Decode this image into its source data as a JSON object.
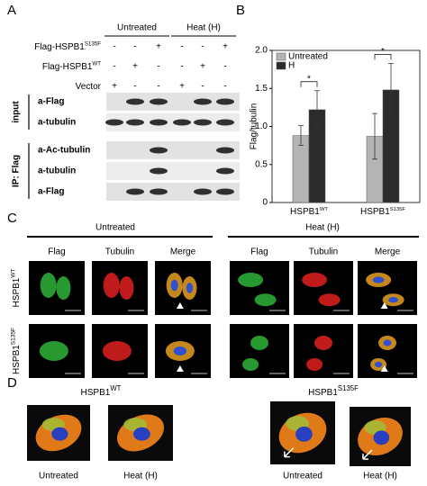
{
  "panel_labels": [
    "A",
    "B",
    "C",
    "D"
  ],
  "panel_a": {
    "groups": [
      "Untreated",
      "Heat (H)"
    ],
    "rows": [
      {
        "label": "Flag-HSPB1",
        "sup": "S135F",
        "signs": [
          "-",
          "-",
          "+",
          "-",
          "-",
          "+"
        ]
      },
      {
        "label": "Flag-HSPB1",
        "sup": "WT",
        "signs": [
          "-",
          "+",
          "-",
          "-",
          "+",
          "-"
        ]
      },
      {
        "label": "Vector",
        "signs": [
          "+",
          "-",
          "-",
          "+",
          "-",
          "-"
        ]
      }
    ],
    "sections": [
      {
        "label": "input",
        "blots": [
          "a-Flag",
          "a-tubulin"
        ]
      },
      {
        "label": "IP: Flag",
        "blots": [
          "a-Ac-tubulin",
          "a-tubulin",
          "a-Flag"
        ]
      }
    ]
  },
  "chart_data": {
    "type": "bar",
    "y_label": "Flag/tubulin",
    "categories": [
      "HSPB1",
      "HSPB1"
    ],
    "category_sups": [
      "WT",
      "S135F"
    ],
    "series": [
      {
        "name": "Untreated",
        "color": "#b4b4b4",
        "values": [
          0.88,
          0.87
        ],
        "errors": [
          0.13,
          0.3
        ]
      },
      {
        "name": "H",
        "color": "#2b2b2b",
        "values": [
          1.22,
          1.48
        ],
        "errors": [
          0.25,
          0.35
        ]
      }
    ],
    "annotations": [
      "*",
      "*"
    ],
    "ylim": [
      0,
      2
    ],
    "yticks": [
      0,
      0.5,
      {
        "value": 1,
        "label": "1.0"
      },
      1.5,
      {
        "value": 2,
        "label": "2.0"
      }
    ],
    "legend": "top-left"
  },
  "panel_c": {
    "groups": [
      "Untreated",
      "Heat (H)"
    ],
    "columns": [
      "Flag",
      "Tubulin",
      "Merge"
    ],
    "rows": [
      {
        "label": "HSPB1",
        "sup": "WT"
      },
      {
        "label": "HSPB1",
        "sup": "S135F"
      }
    ]
  },
  "panel_d": {
    "items": [
      {
        "title": "HSPB1",
        "sup": "WT",
        "captions": [
          "Untreated",
          "Heat (H)"
        ]
      },
      {
        "title": "HSPB1",
        "sup": "S135F",
        "captions": [
          "Untreated",
          "Heat (H)"
        ]
      }
    ]
  }
}
